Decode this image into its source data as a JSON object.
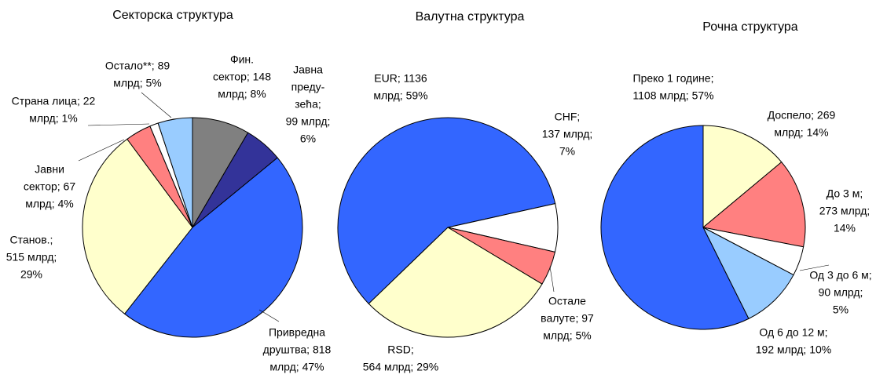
{
  "chart_data": [
    {
      "type": "pie",
      "title": "Секторска структура",
      "start_angle": 0,
      "values": [
        148,
        99,
        818,
        515,
        67,
        22,
        89
      ],
      "percents": [
        8,
        6,
        47,
        29,
        4,
        1,
        5
      ],
      "colors": [
        "#808080",
        "#333399",
        "#3366ff",
        "#ffffcc",
        "#ff8080",
        "#ffffff",
        "#99ccff"
      ],
      "value_labels": [
        [
          "Фин.",
          "сектор; 148",
          "млрд; 8%"
        ],
        [
          "Јавна",
          "преду-",
          "зећа;",
          "99 млрд;",
          "6%"
        ],
        [
          "Привредна",
          "друштва; 818",
          "млрд; 47%"
        ],
        [
          "Станов.;",
          "515 млрд;",
          "29%"
        ],
        [
          "Јавни",
          "сектор; 67",
          "млрд; 4%"
        ],
        [
          "Страна лица; 22",
          "млрд; 1%"
        ],
        [
          "Остало**; 89",
          "млрд; 5%"
        ]
      ]
    },
    {
      "type": "pie",
      "title": "Валутна структура",
      "start_angle": -134,
      "values": [
        1136,
        137,
        97,
        564
      ],
      "percents": [
        59,
        7,
        5,
        29
      ],
      "colors": [
        "#3366ff",
        "#ffffff",
        "#ff8080",
        "#ffffcc"
      ],
      "value_labels": [
        [
          "EUR; 1136",
          "млрд; 59%"
        ],
        [
          "CHF;",
          "137 млрд;",
          "7%"
        ],
        [
          "Остале",
          "валуте; 97",
          "млрд; 5%"
        ],
        [
          "RSD;",
          "564 млрд; 29%"
        ]
      ]
    },
    {
      "type": "pie",
      "title": "Рочна структура",
      "start_angle": 0,
      "values": [
        269,
        273,
        90,
        192,
        1108
      ],
      "percents": [
        14,
        14,
        5,
        10,
        57
      ],
      "colors": [
        "#ffffcc",
        "#ff8080",
        "#ffffff",
        "#99ccff",
        "#3366ff"
      ],
      "value_labels": [
        [
          "Доспело; 269",
          "млрд; 14%"
        ],
        [
          "До 3 м;",
          "273 млрд;",
          "14%"
        ],
        [
          "Од 3 до 6 м;",
          "90 млрд;",
          "5%"
        ],
        [
          "Од 6 до 12 м;",
          "192 млрд; 10%"
        ],
        [
          "Преко 1 године;",
          "1108 млрд; 57%"
        ]
      ]
    }
  ]
}
